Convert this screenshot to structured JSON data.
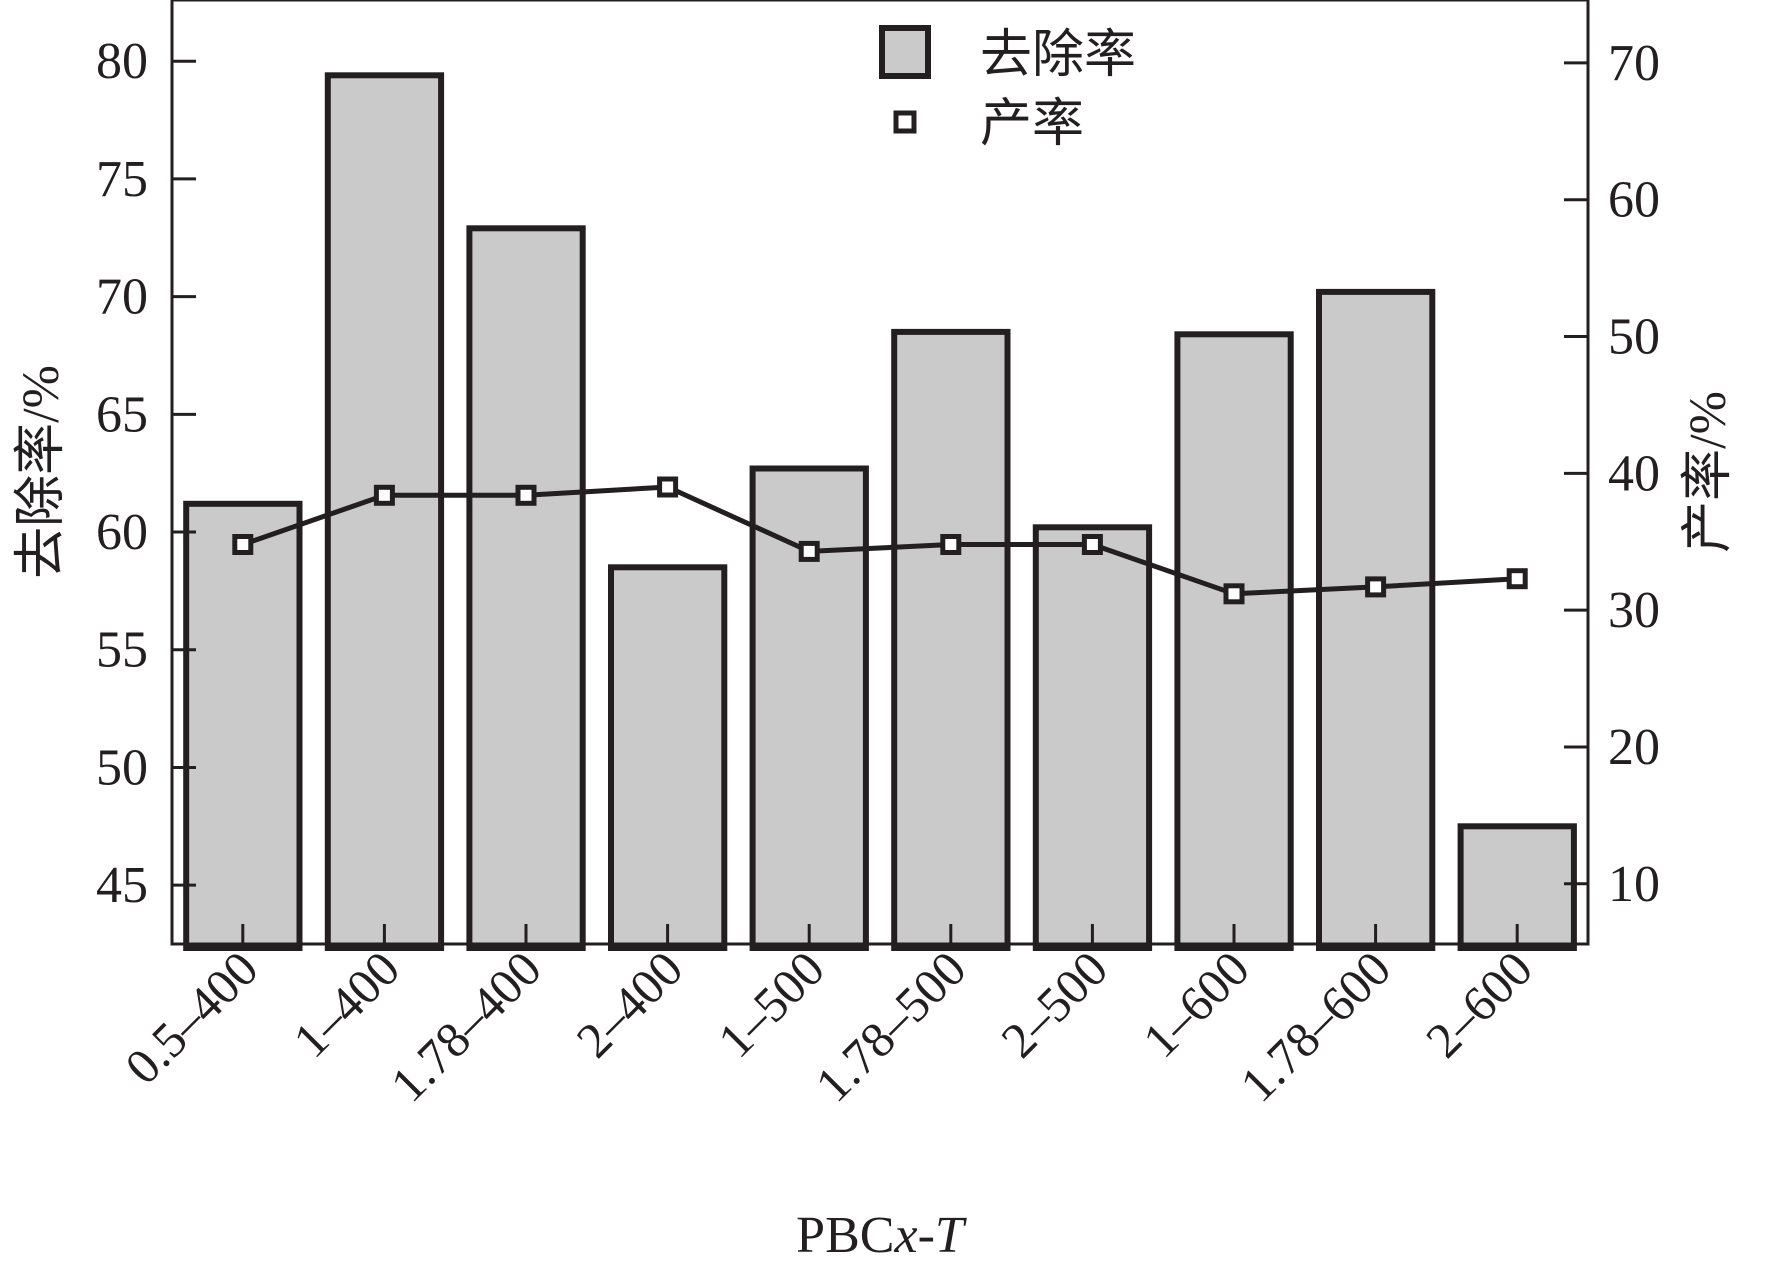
{
  "chart_data": {
    "type": "bar",
    "categories": [
      "0.5–400",
      "1–400",
      "1.78–400",
      "2–400",
      "1–500",
      "1.78–500",
      "2–500",
      "1–600",
      "1.78–600",
      "2–600"
    ],
    "series": [
      {
        "name": "去除率",
        "type": "bar",
        "axis": "left",
        "values": [
          61.2,
          79.4,
          72.9,
          58.5,
          62.7,
          68.5,
          60.2,
          68.4,
          70.2,
          47.5
        ]
      },
      {
        "name": "产率",
        "type": "line",
        "axis": "right",
        "values": [
          34.8,
          38.4,
          38.4,
          39.0,
          34.3,
          34.8,
          34.8,
          31.2,
          31.7,
          32.3
        ]
      }
    ],
    "xlabel": {
      "prefix": "PBC",
      "x_var": "x",
      "sep": "-",
      "t_var": "T"
    },
    "ylabel_left": "去除率/%",
    "ylabel_right": "产率/%",
    "ylim_left": [
      42.5,
      82.6
    ],
    "ylim_right": [
      5.6,
      74.6
    ],
    "yticks_left": [
      "45",
      "50",
      "55",
      "60",
      "65",
      "70",
      "75",
      "80"
    ],
    "yticks_right": [
      "10",
      "20",
      "30",
      "40",
      "50",
      "60",
      "70"
    ],
    "legend_position": "top-center",
    "grid": false,
    "colors": {
      "bar_fill": "#cacaca",
      "stroke": "#231f20",
      "marker_fill": "#ffffff"
    }
  }
}
